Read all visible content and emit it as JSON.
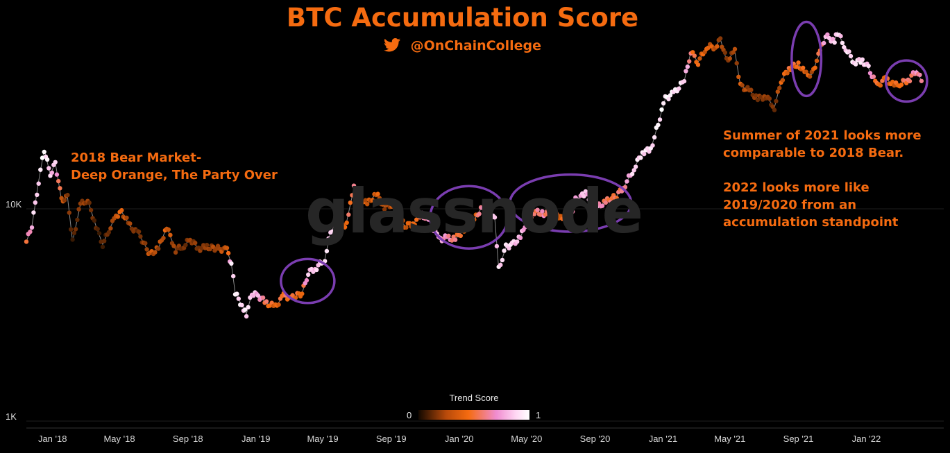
{
  "header": {
    "title": "BTC Accumulation Score",
    "handle": "@OnChainCollege"
  },
  "annotations": {
    "bear_2018": "2018 Bear Market-\nDeep Orange, The Party Over",
    "summer_2021": "Summer of 2021 looks more\ncomparable to 2018 Bear.\n\n2022 looks more like\n2019/2020 from an\naccumulation standpoint"
  },
  "legend": {
    "title": "Trend Score",
    "min_label": "0",
    "max_label": "1"
  },
  "watermark": "glassnode",
  "colors": {
    "accent": "#f56b10",
    "circle": "#7a3db0",
    "score_low": "#2a1200",
    "score_mid": "#f56b10",
    "score_high": "#ffffff"
  },
  "chart_data": {
    "type": "scatter",
    "title": "BTC Accumulation Score",
    "y_scale": "log",
    "ylim": [
      1000,
      100000
    ],
    "y_ticks": [
      {
        "value": 1000,
        "label": "1K"
      },
      {
        "value": 10000,
        "label": "10K"
      }
    ],
    "xlim": [
      "2017-11-15",
      "2022-05-20"
    ],
    "x_ticks": [
      {
        "value": "2018-01-01",
        "label": "Jan '18"
      },
      {
        "value": "2018-05-01",
        "label": "May '18"
      },
      {
        "value": "2018-09-01",
        "label": "Sep '18"
      },
      {
        "value": "2019-01-01",
        "label": "Jan '19"
      },
      {
        "value": "2019-05-01",
        "label": "May '19"
      },
      {
        "value": "2019-09-01",
        "label": "Sep '19"
      },
      {
        "value": "2020-01-01",
        "label": "Jan '20"
      },
      {
        "value": "2020-05-01",
        "label": "May '20"
      },
      {
        "value": "2020-09-01",
        "label": "Sep '20"
      },
      {
        "value": "2021-01-01",
        "label": "Jan '21"
      },
      {
        "value": "2021-05-01",
        "label": "May '21"
      },
      {
        "value": "2021-09-01",
        "label": "Sep '21"
      },
      {
        "value": "2022-01-01",
        "label": "Jan '22"
      }
    ],
    "series": [
      {
        "points": [
          [
            "2017-11-15",
            7000,
            0.55
          ],
          [
            "2017-11-25",
            8300,
            0.85
          ],
          [
            "2017-12-07",
            13500,
            0.92
          ],
          [
            "2017-12-17",
            19000,
            0.98
          ],
          [
            "2017-12-28",
            14500,
            0.85
          ],
          [
            "2018-01-06",
            16500,
            0.85
          ],
          [
            "2018-01-17",
            11000,
            0.4
          ],
          [
            "2018-01-28",
            11300,
            0.3
          ],
          [
            "2018-02-06",
            7000,
            0.12
          ],
          [
            "2018-02-20",
            10500,
            0.3
          ],
          [
            "2018-03-05",
            11000,
            0.28
          ],
          [
            "2018-03-20",
            8300,
            0.15
          ],
          [
            "2018-04-01",
            6800,
            0.1
          ],
          [
            "2018-04-12",
            7900,
            0.25
          ],
          [
            "2018-04-25",
            9300,
            0.45
          ],
          [
            "2018-05-05",
            9700,
            0.45
          ],
          [
            "2018-05-20",
            8300,
            0.3
          ],
          [
            "2018-06-05",
            7600,
            0.2
          ],
          [
            "2018-06-25",
            6100,
            0.4
          ],
          [
            "2018-07-10",
            6500,
            0.35
          ],
          [
            "2018-07-25",
            8200,
            0.45
          ],
          [
            "2018-08-10",
            6400,
            0.3
          ],
          [
            "2018-08-25",
            6700,
            0.2
          ],
          [
            "2018-09-05",
            7200,
            0.3
          ],
          [
            "2018-09-20",
            6500,
            0.25
          ],
          [
            "2018-10-05",
            6600,
            0.3
          ],
          [
            "2018-10-25",
            6500,
            0.35
          ],
          [
            "2018-11-10",
            6400,
            0.4
          ],
          [
            "2018-11-18",
            5500,
            0.9
          ],
          [
            "2018-11-25",
            4000,
            0.95
          ],
          [
            "2018-12-10",
            3400,
            0.9
          ],
          [
            "2018-12-15",
            3200,
            0.92
          ],
          [
            "2018-12-25",
            4000,
            0.85
          ],
          [
            "2019-01-05",
            3900,
            0.8
          ],
          [
            "2019-01-20",
            3600,
            0.55
          ],
          [
            "2019-02-05",
            3450,
            0.45
          ],
          [
            "2019-02-20",
            3900,
            0.55
          ],
          [
            "2019-03-05",
            3800,
            0.52
          ],
          [
            "2019-03-25",
            4000,
            0.5
          ],
          [
            "2019-04-05",
            5000,
            0.85
          ],
          [
            "2019-04-20",
            5300,
            0.85
          ],
          [
            "2019-05-05",
            5800,
            0.9
          ],
          [
            "2019-05-15",
            7800,
            0.92
          ],
          [
            "2019-05-28",
            8700,
            0.6
          ],
          [
            "2019-06-10",
            8000,
            0.5
          ],
          [
            "2019-06-26",
            12500,
            0.6
          ],
          [
            "2019-07-05",
            11500,
            0.45
          ],
          [
            "2019-07-20",
            10500,
            0.4
          ],
          [
            "2019-08-05",
            11800,
            0.45
          ],
          [
            "2019-08-20",
            10200,
            0.35
          ],
          [
            "2019-09-05",
            10500,
            0.4
          ],
          [
            "2019-09-25",
            8300,
            0.45
          ],
          [
            "2019-10-10",
            8500,
            0.45
          ],
          [
            "2019-10-26",
            9400,
            0.7
          ],
          [
            "2019-11-10",
            8700,
            0.75
          ],
          [
            "2019-11-25",
            7200,
            0.8
          ],
          [
            "2019-12-10",
            7300,
            0.7
          ],
          [
            "2019-12-25",
            7200,
            0.6
          ],
          [
            "2020-01-10",
            8000,
            0.45
          ],
          [
            "2020-01-25",
            8600,
            0.4
          ],
          [
            "2020-02-12",
            10300,
            0.75
          ],
          [
            "2020-02-25",
            9500,
            0.8
          ],
          [
            "2020-03-05",
            9000,
            0.85
          ],
          [
            "2020-03-12",
            5200,
            0.9
          ],
          [
            "2020-03-25",
            6600,
            0.9
          ],
          [
            "2020-04-05",
            6800,
            0.88
          ],
          [
            "2020-04-20",
            7300,
            0.8
          ],
          [
            "2020-05-01",
            8800,
            0.75
          ],
          [
            "2020-05-15",
            9700,
            0.6
          ],
          [
            "2020-06-01",
            9500,
            0.65
          ],
          [
            "2020-06-15",
            9400,
            0.5
          ],
          [
            "2020-07-01",
            9200,
            0.45
          ],
          [
            "2020-07-20",
            9400,
            0.55
          ],
          [
            "2020-07-28",
            11000,
            0.8
          ],
          [
            "2020-08-15",
            11800,
            0.85
          ],
          [
            "2020-09-05",
            10200,
            0.75
          ],
          [
            "2020-09-20",
            10800,
            0.6
          ],
          [
            "2020-10-10",
            11500,
            0.55
          ],
          [
            "2020-10-25",
            13000,
            0.7
          ],
          [
            "2020-11-10",
            15500,
            0.9
          ],
          [
            "2020-11-25",
            18500,
            0.92
          ],
          [
            "2020-12-10",
            19000,
            0.9
          ],
          [
            "2020-12-20",
            23500,
            0.95
          ],
          [
            "2021-01-05",
            33000,
            0.97
          ],
          [
            "2021-01-20",
            35000,
            0.95
          ],
          [
            "2021-02-08",
            40000,
            0.9
          ],
          [
            "2021-02-20",
            55000,
            0.6
          ],
          [
            "2021-03-05",
            49000,
            0.45
          ],
          [
            "2021-03-20",
            58000,
            0.45
          ],
          [
            "2021-04-05",
            58000,
            0.4
          ],
          [
            "2021-04-14",
            63000,
            0.35
          ],
          [
            "2021-04-25",
            50000,
            0.3
          ],
          [
            "2021-05-10",
            55000,
            0.35
          ],
          [
            "2021-05-20",
            38000,
            0.4
          ],
          [
            "2021-06-05",
            36000,
            0.3
          ],
          [
            "2021-06-20",
            33000,
            0.25
          ],
          [
            "2021-07-05",
            34000,
            0.3
          ],
          [
            "2021-07-20",
            30000,
            0.2
          ],
          [
            "2021-08-01",
            40000,
            0.45
          ],
          [
            "2021-08-15",
            46000,
            0.5
          ],
          [
            "2021-09-01",
            48000,
            0.5
          ],
          [
            "2021-09-15",
            43000,
            0.45
          ],
          [
            "2021-09-25",
            43000,
            0.4
          ],
          [
            "2021-10-10",
            55000,
            0.55
          ],
          [
            "2021-10-20",
            65000,
            0.8
          ],
          [
            "2021-11-05",
            62000,
            0.85
          ],
          [
            "2021-11-10",
            68000,
            0.88
          ],
          [
            "2021-11-25",
            57000,
            0.9
          ],
          [
            "2021-12-10",
            49000,
            0.92
          ],
          [
            "2021-12-25",
            50000,
            0.9
          ],
          [
            "2022-01-05",
            46000,
            0.85
          ],
          [
            "2022-01-20",
            38000,
            0.5
          ],
          [
            "2022-02-05",
            41000,
            0.5
          ],
          [
            "2022-02-20",
            38000,
            0.45
          ],
          [
            "2022-03-05",
            39000,
            0.55
          ],
          [
            "2022-03-20",
            41000,
            0.6
          ],
          [
            "2022-04-01",
            45000,
            0.7
          ],
          [
            "2022-04-10",
            40000,
            0.65
          ]
        ]
      }
    ],
    "highlight_circles": [
      {
        "x_start": "2019-02-15",
        "x_end": "2019-05-22",
        "y_low": 3600,
        "y_high": 5800
      },
      {
        "x_start": "2019-11-10",
        "x_end": "2020-03-28",
        "y_low": 6500,
        "y_high": 12800
      },
      {
        "x_start": "2020-04-01",
        "x_end": "2020-11-05",
        "y_low": 7800,
        "y_high": 14500
      },
      {
        "x_start": "2021-08-20",
        "x_end": "2021-10-12",
        "y_low": 34000,
        "y_high": 76000
      },
      {
        "x_start": "2022-02-05",
        "x_end": "2022-04-20",
        "y_low": 32000,
        "y_high": 50000
      }
    ],
    "grid": true
  }
}
